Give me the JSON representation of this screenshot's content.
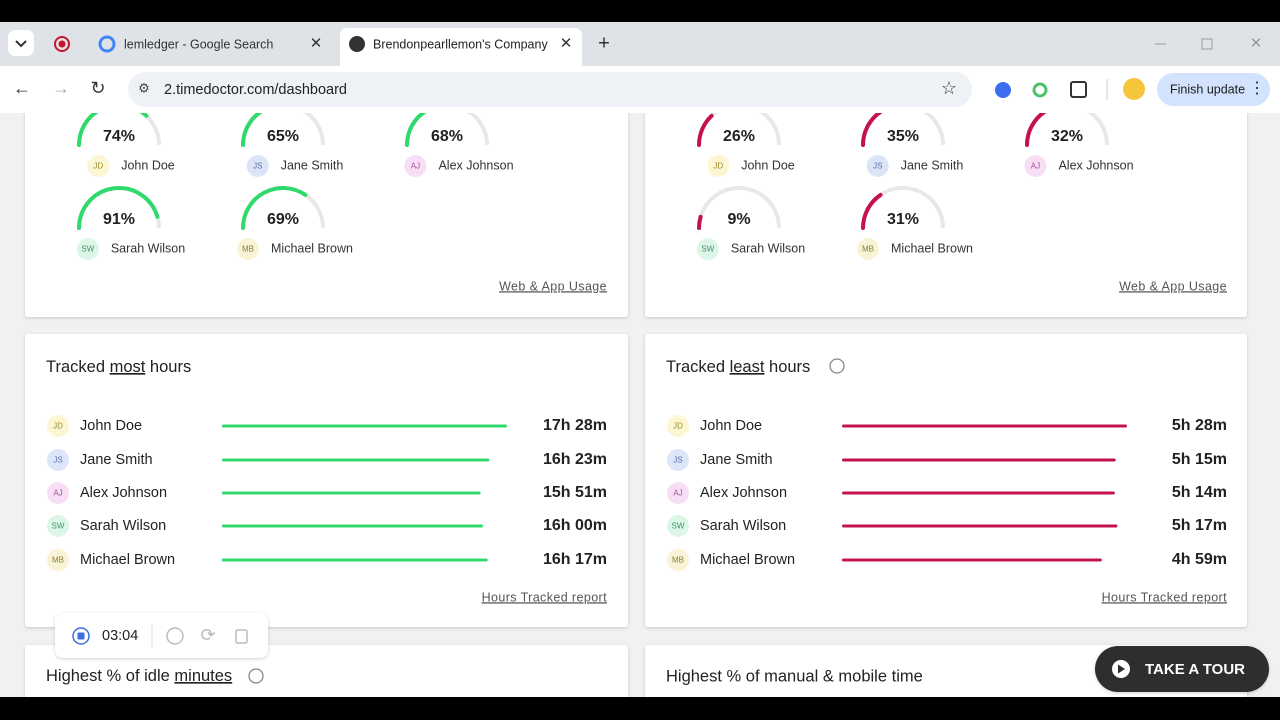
{
  "browser": {
    "tabs": [
      "lemledger - Google Search",
      "Brendonpearllemon's Company"
    ],
    "url": "2.timedoctor.com/dashboard",
    "update_button": "Finish update"
  },
  "productive": {
    "people": [
      {
        "initials": "JD",
        "name": "John Doe",
        "value": "74%"
      },
      {
        "initials": "JS",
        "name": "Jane Smith",
        "value": "65%"
      },
      {
        "initials": "AJ",
        "name": "Alex Johnson",
        "value": "68%"
      },
      {
        "initials": "SW",
        "name": "Sarah Wilson",
        "value": "91%"
      },
      {
        "initials": "MB",
        "name": "Michael Brown",
        "value": "69%"
      }
    ],
    "link": "Web & App Usage"
  },
  "unproductive": {
    "people": [
      {
        "initials": "JD",
        "name": "John Doe",
        "value": "26%"
      },
      {
        "initials": "JS",
        "name": "Jane Smith",
        "value": "35%"
      },
      {
        "initials": "AJ",
        "name": "Alex Johnson",
        "value": "32%"
      },
      {
        "initials": "SW",
        "name": "Sarah Wilson",
        "value": "9%"
      },
      {
        "initials": "MB",
        "name": "Michael Brown",
        "value": "31%"
      }
    ],
    "link": "Web & App Usage"
  },
  "tracked_most": {
    "title_before": "Tracked ",
    "title_emphasis": "most",
    "title_after": " hours",
    "rows": [
      {
        "initials": "JD",
        "name": "John Doe",
        "value": "17h 28m"
      },
      {
        "initials": "JS",
        "name": "Jane Smith",
        "value": "16h 23m"
      },
      {
        "initials": "AJ",
        "name": "Alex Johnson",
        "value": "15h 51m"
      },
      {
        "initials": "SW",
        "name": "Sarah Wilson",
        "value": "16h 00m"
      },
      {
        "initials": "MB",
        "name": "Michael Brown",
        "value": "16h 17m"
      }
    ],
    "link": "Hours Tracked report"
  },
  "tracked_least": {
    "title_before": "Tracked ",
    "title_emphasis": "least",
    "title_after": " hours",
    "rows": [
      {
        "initials": "JD",
        "name": "John Doe",
        "value": "5h 28m"
      },
      {
        "initials": "JS",
        "name": "Jane Smith",
        "value": "5h 15m"
      },
      {
        "initials": "AJ",
        "name": "Alex Johnson",
        "value": "5h 14m"
      },
      {
        "initials": "SW",
        "name": "Sarah Wilson",
        "value": "5h 17m"
      },
      {
        "initials": "MB",
        "name": "Michael Brown",
        "value": "4h 59m"
      }
    ],
    "link": "Hours Tracked report"
  },
  "idle": {
    "title_before": "Highest % of idle ",
    "title_emphasis": "minutes"
  },
  "manual": {
    "title": "Highest % of manual & mobile time"
  },
  "timer": "03:04",
  "tour": "TAKE A TOUR"
}
